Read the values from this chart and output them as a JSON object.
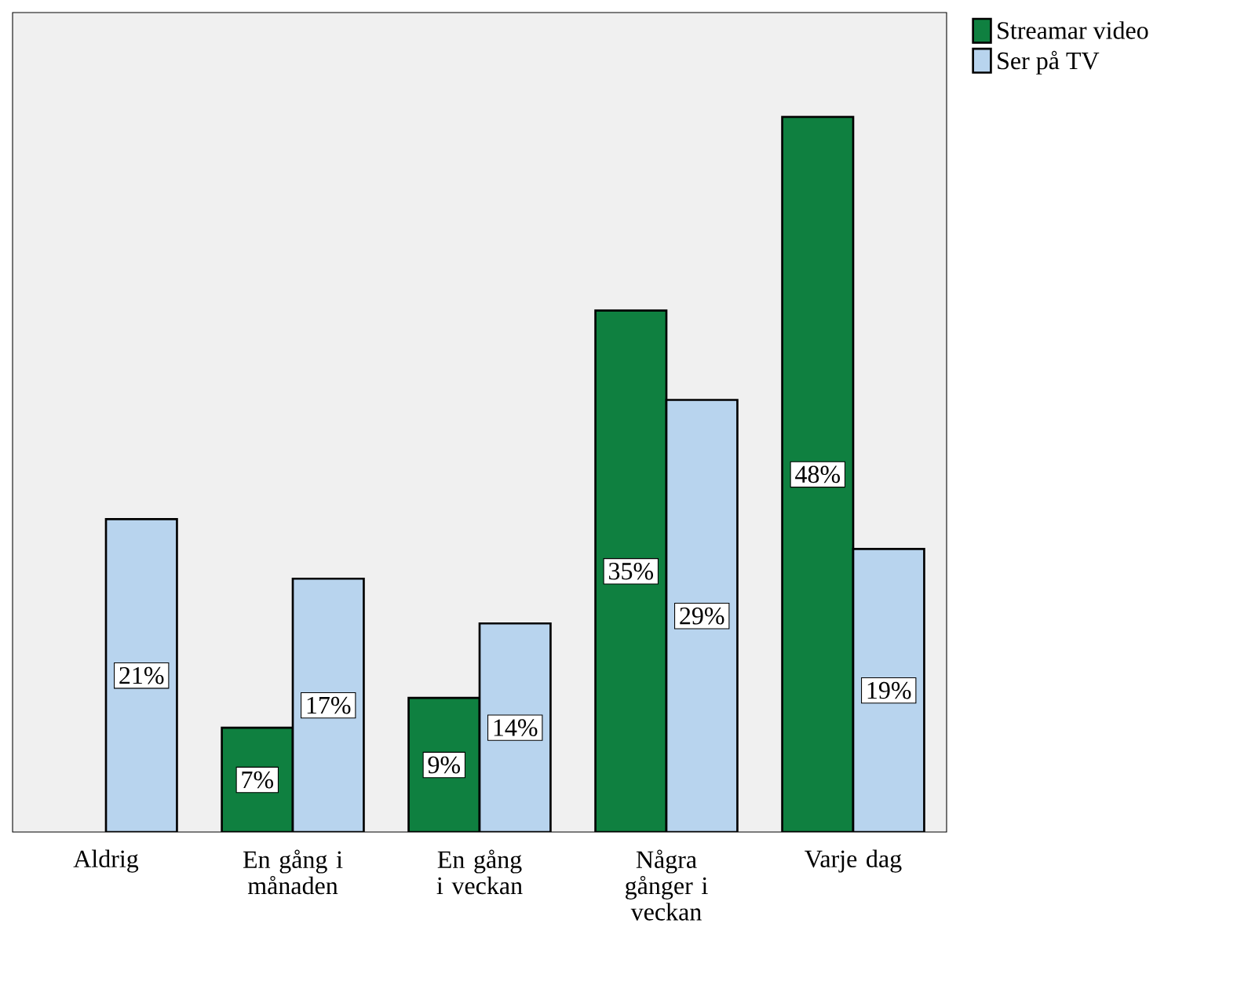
{
  "chart_data": {
    "type": "bar",
    "categories": [
      "Aldrig",
      "En gång i månaden",
      "En gång i veckan",
      "Några gånger i veckan",
      "Varje dag"
    ],
    "series": [
      {
        "name": "Streamar video",
        "color": "#0f8040",
        "values": [
          null,
          7,
          9,
          35,
          48
        ],
        "value_labels": [
          null,
          "7%",
          "9%",
          "35%",
          "48%"
        ]
      },
      {
        "name": "Ser på TV",
        "color": "#b8d4ee",
        "values": [
          21,
          17,
          14,
          29,
          19
        ],
        "value_labels": [
          "21%",
          "17%",
          "14%",
          "29%",
          "19%"
        ]
      }
    ],
    "ylim": [
      0,
      55
    ],
    "tick_labels": "x",
    "legend": "top right",
    "grid": false
  }
}
